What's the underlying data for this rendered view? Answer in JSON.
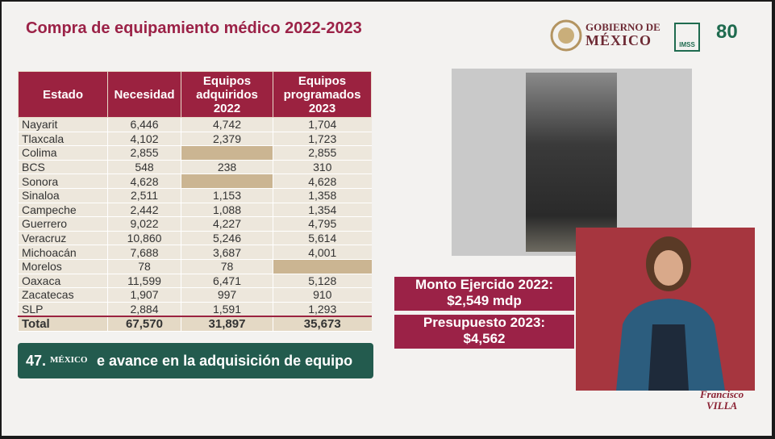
{
  "header": {
    "title": "Compra de equipamiento médico 2022-2023",
    "logo_gov_line1": "GOBIERNO DE",
    "logo_gov_line2": "MÉXICO",
    "logo_imss": "IMSS",
    "logo_anniv": "80"
  },
  "table": {
    "columns": [
      "Estado",
      "Necesidad",
      "Equipos adquiridos 2022",
      "Equipos programados 2023"
    ],
    "rows": [
      [
        "Nayarit",
        "6,446",
        "4,742",
        "1,704"
      ],
      [
        "Tlaxcala",
        "4,102",
        "2,379",
        "1,723"
      ],
      [
        "Colima",
        "2,855",
        null,
        "2,855"
      ],
      [
        "BCS",
        "548",
        "238",
        "310"
      ],
      [
        "Sonora",
        "4,628",
        null,
        "4,628"
      ],
      [
        "Sinaloa",
        "2,511",
        "1,153",
        "1,358"
      ],
      [
        "Campeche",
        "2,442",
        "1,088",
        "1,354"
      ],
      [
        "Guerrero",
        "9,022",
        "4,227",
        "4,795"
      ],
      [
        "Veracruz",
        "10,860",
        "5,246",
        "5,614"
      ],
      [
        "Michoacán",
        "7,688",
        "3,687",
        "4,001"
      ],
      [
        "Morelos",
        "78",
        "78",
        null
      ],
      [
        "Oaxaca",
        "11,599",
        "6,471",
        "5,128"
      ],
      [
        "Zacatecas",
        "1,907",
        "997",
        "910"
      ],
      [
        "SLP",
        "2,884",
        "1,591",
        "1,293"
      ]
    ],
    "total": [
      "Total",
      "67,570",
      "31,897",
      "35,673"
    ]
  },
  "banner": {
    "text_start": "47.",
    "text_end": "e avance en la adquisición de equipo",
    "logo": "MÉXICO"
  },
  "boxes": [
    {
      "label": "Monto Ejercido 2022:",
      "value": "$2,549 mdp"
    },
    {
      "label": "Presupuesto 2023:",
      "value": "$4,562"
    }
  ],
  "footer_logo": {
    "line1": "Francisco",
    "line2": "VILLA"
  }
}
